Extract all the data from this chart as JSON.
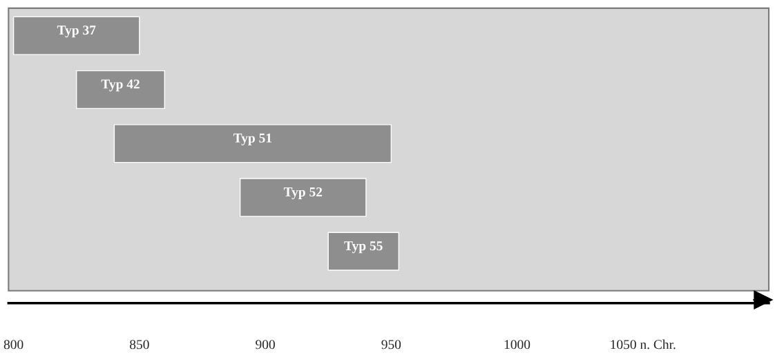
{
  "chart_data": {
    "type": "bar",
    "orientation": "horizontal",
    "categories": [
      "Typ 37",
      "Typ 42",
      "Typ 51",
      "Typ 52",
      "Typ 55"
    ],
    "base": [
      800,
      825,
      840,
      890,
      925
    ],
    "values": [
      50,
      35,
      110,
      50,
      28
    ],
    "color": "#8e8e8e",
    "xlim": [
      798,
      1100
    ],
    "xticks": [
      800,
      850,
      900,
      950,
      1000,
      {
        "value": 1050,
        "label": "1050 n. Chr."
      }
    ],
    "tick_labels": "x",
    "grid": false,
    "legend": false
  }
}
